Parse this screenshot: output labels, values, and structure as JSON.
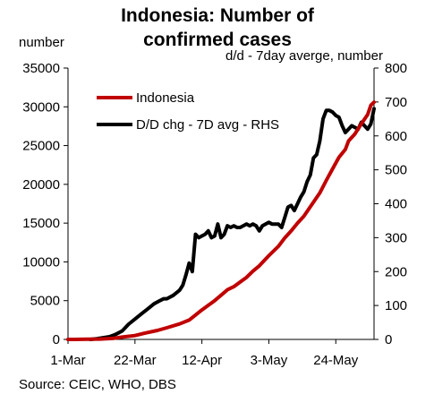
{
  "chart_data": {
    "type": "line",
    "title": "Indonesia: Number of confirmed cases",
    "title_lines": [
      "Indonesia: Number of",
      "confirmed cases"
    ],
    "ylabel_left": "number",
    "ylabel_right": "d/d - 7day averge, number",
    "source": "Source: CEIC, WHO, DBS",
    "x_ticks": [
      "1-Mar",
      "22-Mar",
      "12-Apr",
      "3-May",
      "24-May"
    ],
    "x_tick_days": [
      0,
      21,
      42,
      63,
      84
    ],
    "x_range_days": [
      0,
      96
    ],
    "ylim_left": [
      0,
      35000
    ],
    "yticks_left": [
      "0",
      "5000",
      "10000",
      "15000",
      "20000",
      "25000",
      "30000",
      "35000"
    ],
    "ylim_right": [
      0,
      800
    ],
    "yticks_right": [
      "0",
      "100",
      "200",
      "300",
      "400",
      "500",
      "600",
      "700",
      "800"
    ],
    "legend": {
      "placement": "top-left",
      "entries": [
        "Indonesia",
        "D/D chg - 7D avg - RHS"
      ]
    },
    "series": [
      {
        "name": "Indonesia",
        "axis": "left",
        "color": "#c00000",
        "points": [
          [
            0,
            0
          ],
          [
            2,
            2
          ],
          [
            6,
            20
          ],
          [
            10,
            50
          ],
          [
            14,
            130
          ],
          [
            17,
            300
          ],
          [
            21,
            500
          ],
          [
            24,
            800
          ],
          [
            28,
            1150
          ],
          [
            31,
            1500
          ],
          [
            35,
            2000
          ],
          [
            38,
            2500
          ],
          [
            42,
            3800
          ],
          [
            44,
            4400
          ],
          [
            46,
            5000
          ],
          [
            48,
            5700
          ],
          [
            50,
            6400
          ],
          [
            52,
            6800
          ],
          [
            54,
            7400
          ],
          [
            56,
            8000
          ],
          [
            58,
            8800
          ],
          [
            60,
            9500
          ],
          [
            63,
            10800
          ],
          [
            66,
            12000
          ],
          [
            68,
            13100
          ],
          [
            70,
            14000
          ],
          [
            72,
            15000
          ],
          [
            74,
            15900
          ],
          [
            77,
            17700
          ],
          [
            79,
            18900
          ],
          [
            81,
            20500
          ],
          [
            83,
            22000
          ],
          [
            85,
            23500
          ],
          [
            87,
            24500
          ],
          [
            88,
            25600
          ],
          [
            90,
            26500
          ],
          [
            92,
            27800
          ],
          [
            94,
            29000
          ],
          [
            95,
            30200
          ],
          [
            96,
            30600
          ]
        ]
      },
      {
        "name": "D/D chg - 7D avg - RHS",
        "axis": "right",
        "color": "#000000",
        "points": [
          [
            7,
            0
          ],
          [
            9,
            2
          ],
          [
            11,
            5
          ],
          [
            13,
            8
          ],
          [
            15,
            15
          ],
          [
            17,
            25
          ],
          [
            19,
            45
          ],
          [
            21,
            60
          ],
          [
            23,
            75
          ],
          [
            25,
            90
          ],
          [
            27,
            105
          ],
          [
            29,
            115
          ],
          [
            30,
            120
          ],
          [
            31,
            120
          ],
          [
            33,
            130
          ],
          [
            35,
            145
          ],
          [
            36,
            160
          ],
          [
            37,
            190
          ],
          [
            38,
            225
          ],
          [
            39,
            200
          ],
          [
            40,
            310
          ],
          [
            41,
            300
          ],
          [
            42,
            305
          ],
          [
            43,
            310
          ],
          [
            44,
            320
          ],
          [
            45,
            300
          ],
          [
            46,
            305
          ],
          [
            47,
            340
          ],
          [
            48,
            300
          ],
          [
            49,
            310
          ],
          [
            50,
            335
          ],
          [
            51,
            330
          ],
          [
            52,
            335
          ],
          [
            53,
            330
          ],
          [
            54,
            330
          ],
          [
            55,
            335
          ],
          [
            56,
            340
          ],
          [
            57,
            335
          ],
          [
            58,
            340
          ],
          [
            59,
            335
          ],
          [
            60,
            320
          ],
          [
            61,
            335
          ],
          [
            62,
            340
          ],
          [
            63,
            345
          ],
          [
            64,
            340
          ],
          [
            66,
            340
          ],
          [
            67,
            330
          ],
          [
            68,
            360
          ],
          [
            69,
            390
          ],
          [
            70,
            395
          ],
          [
            71,
            380
          ],
          [
            72,
            400
          ],
          [
            73,
            420
          ],
          [
            74,
            435
          ],
          [
            75,
            465
          ],
          [
            76,
            485
          ],
          [
            77,
            535
          ],
          [
            78,
            545
          ],
          [
            79,
            585
          ],
          [
            80,
            650
          ],
          [
            81,
            675
          ],
          [
            82,
            675
          ],
          [
            83,
            670
          ],
          [
            84,
            660
          ],
          [
            85,
            655
          ],
          [
            86,
            630
          ],
          [
            87,
            610
          ],
          [
            88,
            620
          ],
          [
            89,
            630
          ],
          [
            90,
            625
          ],
          [
            91,
            620
          ],
          [
            92,
            640
          ],
          [
            93,
            630
          ],
          [
            94,
            620
          ],
          [
            95,
            635
          ],
          [
            96,
            680
          ]
        ]
      }
    ],
    "grid": false
  }
}
